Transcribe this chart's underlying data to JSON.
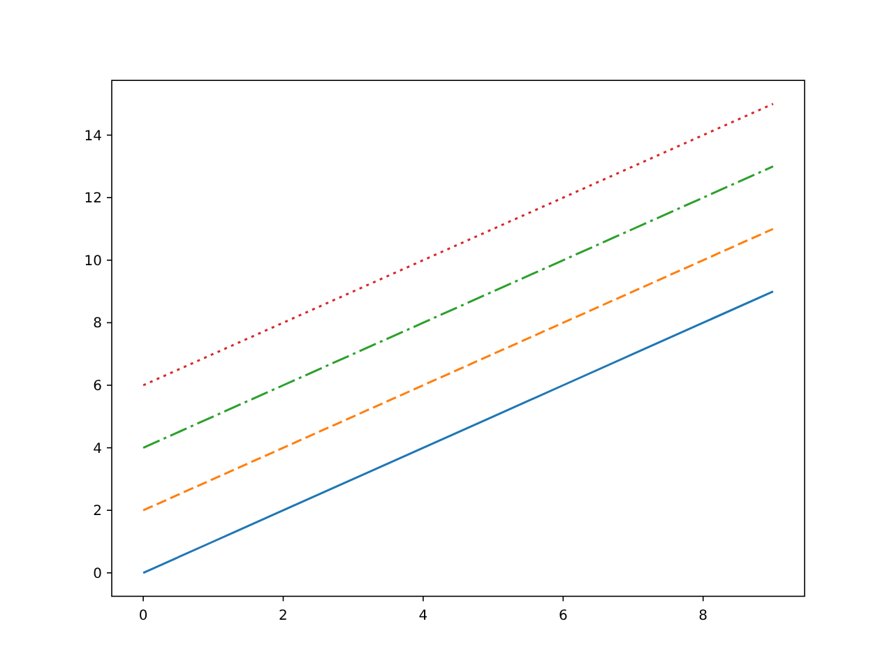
{
  "chart_data": {
    "type": "line",
    "x": [
      0,
      1,
      2,
      3,
      4,
      5,
      6,
      7,
      8,
      9
    ],
    "series": [
      {
        "color": "#1f77b4",
        "line_style": "solid",
        "values": [
          0,
          1,
          2,
          3,
          4,
          5,
          6,
          7,
          8,
          9
        ]
      },
      {
        "color": "#ff7f0e",
        "line_style": "dashed",
        "values": [
          2,
          3,
          4,
          5,
          6,
          7,
          8,
          9,
          10,
          11
        ]
      },
      {
        "color": "#2ca02c",
        "line_style": "dashdot",
        "values": [
          4,
          5,
          6,
          7,
          8,
          9,
          10,
          11,
          12,
          13
        ]
      },
      {
        "color": "#d62728",
        "line_style": "dotted",
        "values": [
          6,
          7,
          8,
          9,
          10,
          11,
          12,
          13,
          14,
          15
        ]
      }
    ],
    "xlim": [
      -0.45,
      9.45
    ],
    "ylim": [
      -0.75,
      15.75
    ],
    "xticks": [
      0,
      2,
      4,
      6,
      8
    ],
    "yticks": [
      0,
      2,
      4,
      6,
      8,
      10,
      12,
      14
    ],
    "grid": false
  }
}
